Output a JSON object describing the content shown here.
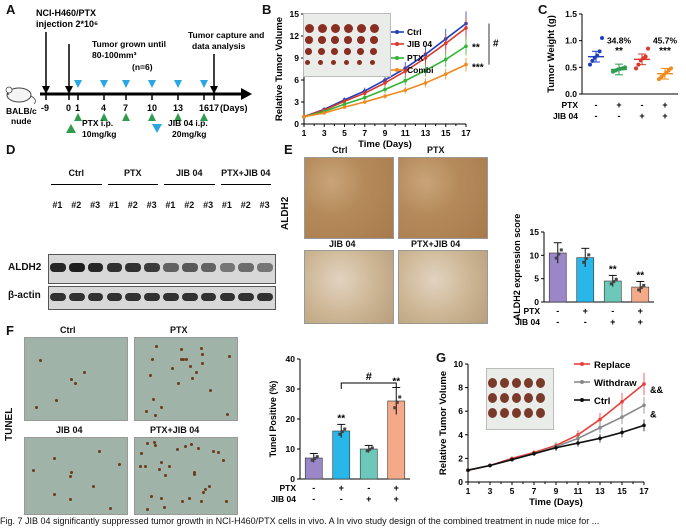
{
  "panels": {
    "A": "A",
    "B": "B",
    "C": "C",
    "D": "D",
    "E": "E",
    "F": "F",
    "G": "G"
  },
  "panelA": {
    "inject_line1": "NCI-H460/PTX",
    "inject_line2": "injection 2*10⁶",
    "grown_line1": "Tumor grown until",
    "grown_line2": "80-100mm³",
    "grown_n": "(n=6)",
    "capture_line1": "Tumor capture and",
    "capture_line2": "data analysis",
    "mouse_line1": "BALB/c",
    "mouse_line2": "nude",
    "days": [
      "-9",
      "0",
      "1",
      "4",
      "7",
      "10",
      "13",
      "16",
      "17"
    ],
    "days_unit": "(Days)",
    "ptx_line1": "PTX  i.p.",
    "ptx_line2": "10mg/kg",
    "jib_line1": "JIB 04 i.p.",
    "jib_line2": "20mg/kg",
    "ptx_color": "#2e9b4e",
    "jib_color": "#2aa7e0"
  },
  "chart_data": [
    {
      "id": "B",
      "type": "line",
      "title": "",
      "xlabel": "Time (Days)",
      "ylabel": "Relative Tumor Volume",
      "x": [
        1,
        3,
        5,
        7,
        9,
        11,
        13,
        15,
        17
      ],
      "xlim": [
        1,
        17
      ],
      "ylim": [
        0,
        15
      ],
      "yticks": [
        0,
        3,
        6,
        9,
        12,
        15
      ],
      "series": [
        {
          "name": "Ctrl",
          "color": "#1f3fbf",
          "values": [
            1,
            2.0,
            3.3,
            4.5,
            6.0,
            7.6,
            9.5,
            11.6,
            13.7
          ]
        },
        {
          "name": "JIB 04",
          "color": "#d93a2b",
          "values": [
            1,
            1.9,
            3.1,
            4.2,
            5.6,
            7.2,
            9.0,
            11.0,
            13.1
          ]
        },
        {
          "name": "PTX",
          "color": "#33b533",
          "values": [
            1,
            1.7,
            2.7,
            3.6,
            4.7,
            5.9,
            7.3,
            8.8,
            10.6
          ]
        },
        {
          "name": "Combi",
          "color": "#f08a1c",
          "values": [
            1,
            1.5,
            2.3,
            3.0,
            3.8,
            4.6,
            5.6,
            6.8,
            8.1
          ]
        }
      ],
      "annotations": [
        "**",
        "***",
        "#"
      ]
    },
    {
      "id": "C",
      "type": "scatter",
      "ylabel": "Tumor Weight (g)",
      "ylim": [
        0,
        1.5
      ],
      "yticks": [
        "0.0",
        "0.5",
        "1.0",
        "1.5"
      ],
      "groups": [
        {
          "color": "#1f3fbf",
          "mean": 0.7,
          "points": [
            0.55,
            0.62,
            0.68,
            0.72,
            0.8,
            1.05
          ]
        },
        {
          "color": "#2e9b4e",
          "mean": 0.46,
          "points": [
            0.42,
            0.44,
            0.46,
            0.47,
            0.48,
            0.5
          ]
        },
        {
          "color": "#d93a2b",
          "mean": 0.65,
          "points": [
            0.48,
            0.55,
            0.63,
            0.67,
            0.7,
            0.85
          ]
        },
        {
          "color": "#f08a1c",
          "mean": 0.38,
          "points": [
            0.28,
            0.32,
            0.36,
            0.4,
            0.44,
            0.48
          ]
        }
      ],
      "annotations": [
        {
          "group": 1,
          "pct": "34.8%",
          "stars": "**"
        },
        {
          "group": 3,
          "pct": "45.7%",
          "stars": "***"
        }
      ],
      "rows": [
        {
          "label": "PTX",
          "marks": [
            "-",
            "+",
            "-",
            "+"
          ]
        },
        {
          "label": "JIB 04",
          "marks": [
            "-",
            "-",
            "+",
            "+"
          ]
        }
      ]
    },
    {
      "id": "E",
      "type": "bar",
      "ylabel": "ALDH2 expression score",
      "ylim": [
        0,
        15
      ],
      "yticks": [
        0,
        5,
        10,
        15
      ],
      "values": [
        10.5,
        9.5,
        4.5,
        3.2
      ],
      "errors": [
        2.2,
        2.0,
        1.2,
        1.2
      ],
      "colors": [
        "#9b86c8",
        "#29b6e8",
        "#6cc8b8",
        "#f4a988"
      ],
      "stars": [
        "",
        "",
        "**",
        "**"
      ],
      "rows": [
        {
          "label": "PTX",
          "marks": [
            "-",
            "+",
            "-",
            "+"
          ]
        },
        {
          "label": "JIB 04",
          "marks": [
            "-",
            "-",
            "+",
            "+"
          ]
        }
      ]
    },
    {
      "id": "F",
      "type": "bar",
      "ylabel": "Tunel Positive (%)",
      "ylim": [
        0,
        40
      ],
      "yticks": [
        0,
        10,
        20,
        30,
        40
      ],
      "values": [
        7,
        16,
        10,
        26
      ],
      "errors": [
        1.5,
        2.2,
        1.2,
        4.5
      ],
      "colors": [
        "#9b86c8",
        "#29b6e8",
        "#6cc8b8",
        "#f4a988"
      ],
      "stars": [
        "",
        "**",
        "",
        "**"
      ],
      "bracket": "#",
      "rows": [
        {
          "label": "PTX",
          "marks": [
            "-",
            "+",
            "-",
            "+"
          ]
        },
        {
          "label": "JIB 04",
          "marks": [
            "-",
            "-",
            "+",
            "+"
          ]
        }
      ]
    },
    {
      "id": "G",
      "type": "line",
      "xlabel": "Time (Days)",
      "ylabel": "Relative Tumor Volume",
      "x": [
        1,
        3,
        5,
        7,
        9,
        11,
        13,
        15,
        17
      ],
      "xlim": [
        1,
        17
      ],
      "ylim": [
        0,
        10
      ],
      "yticks": [
        0,
        2,
        4,
        6,
        8,
        10
      ],
      "series": [
        {
          "name": "Replace",
          "color": "#e8403a",
          "values": [
            1,
            1.4,
            2.0,
            2.5,
            3.1,
            4.0,
            5.3,
            6.8,
            8.3
          ]
        },
        {
          "name": "Withdraw",
          "color": "#8a8a8a",
          "values": [
            1,
            1.4,
            1.9,
            2.4,
            3.0,
            3.7,
            4.6,
            5.5,
            6.5
          ]
        },
        {
          "name": "Ctrl",
          "color": "#111111",
          "values": [
            1,
            1.4,
            1.9,
            2.4,
            2.9,
            3.3,
            3.7,
            4.2,
            4.8
          ]
        }
      ],
      "annotations": [
        "&&",
        "&"
      ]
    }
  ],
  "panelD": {
    "groups": [
      "Ctrl",
      "PTX",
      "JIB 04",
      "PTX+JIB 04"
    ],
    "lanes": [
      "#1",
      "#2",
      "#3",
      "#1",
      "#2",
      "#3",
      "#1",
      "#2",
      "#3",
      "#1",
      "#2",
      "#3"
    ],
    "rows": [
      "ALDH2",
      "β-actin"
    ]
  },
  "panelE": {
    "side": "ALDH2",
    "images": [
      "Ctrl",
      "PTX",
      "JIB 04",
      "PTX+JIB 04"
    ]
  },
  "panelF": {
    "side": "TUNEL",
    "images": [
      "Ctrl",
      "PTX",
      "JIB 04",
      "PTX+JIB 04"
    ]
  },
  "caption": "Fig. 7  JIB 04 significantly suppressed tumor growth in NCI-H460/PTX cells in vivo. A In vivo study design of the combined treatment in nude mice for ..."
}
